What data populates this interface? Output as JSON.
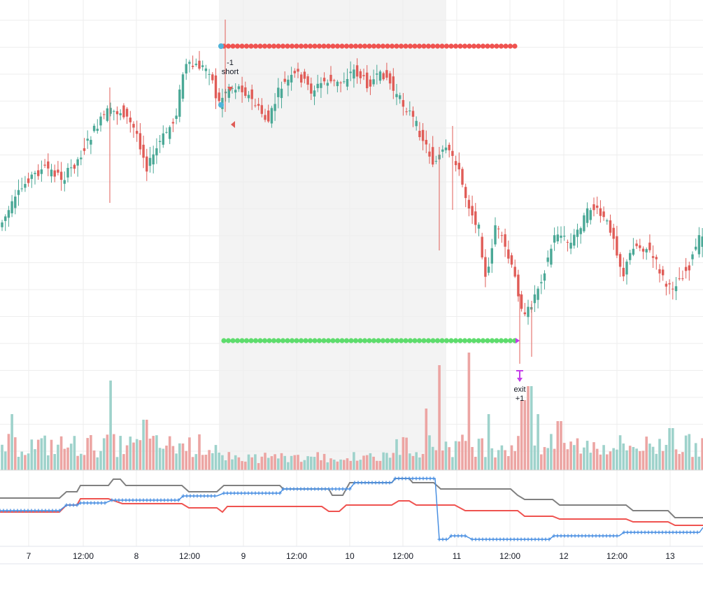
{
  "chart_data": {
    "type": "candlestick",
    "x_tick_labels": [
      "7",
      "12:00",
      "8",
      "12:00",
      "9",
      "12:00",
      "10",
      "12:00",
      "11",
      "12:00",
      "12",
      "12:00",
      "13"
    ],
    "annotations": {
      "entry_qty": "-1",
      "entry_label": "short",
      "exit_label": "exit",
      "exit_qty": "+1"
    },
    "trade": {
      "stop_level_color": "#ef5350",
      "target_level_color": "#5ddc6c",
      "entry_marker_color": "#4fb3d9",
      "exit_marker_color": "#c33de8"
    },
    "colors": {
      "up": "#4aa896",
      "down": "#e05c57",
      "volume_up": "#9ed2cb",
      "volume_down": "#eca5a3",
      "highlight_band": "#f3f3f3",
      "indicator_gray": "#808080",
      "indicator_red": "#ef5350",
      "indicator_blue": "#4a90e2"
    }
  }
}
